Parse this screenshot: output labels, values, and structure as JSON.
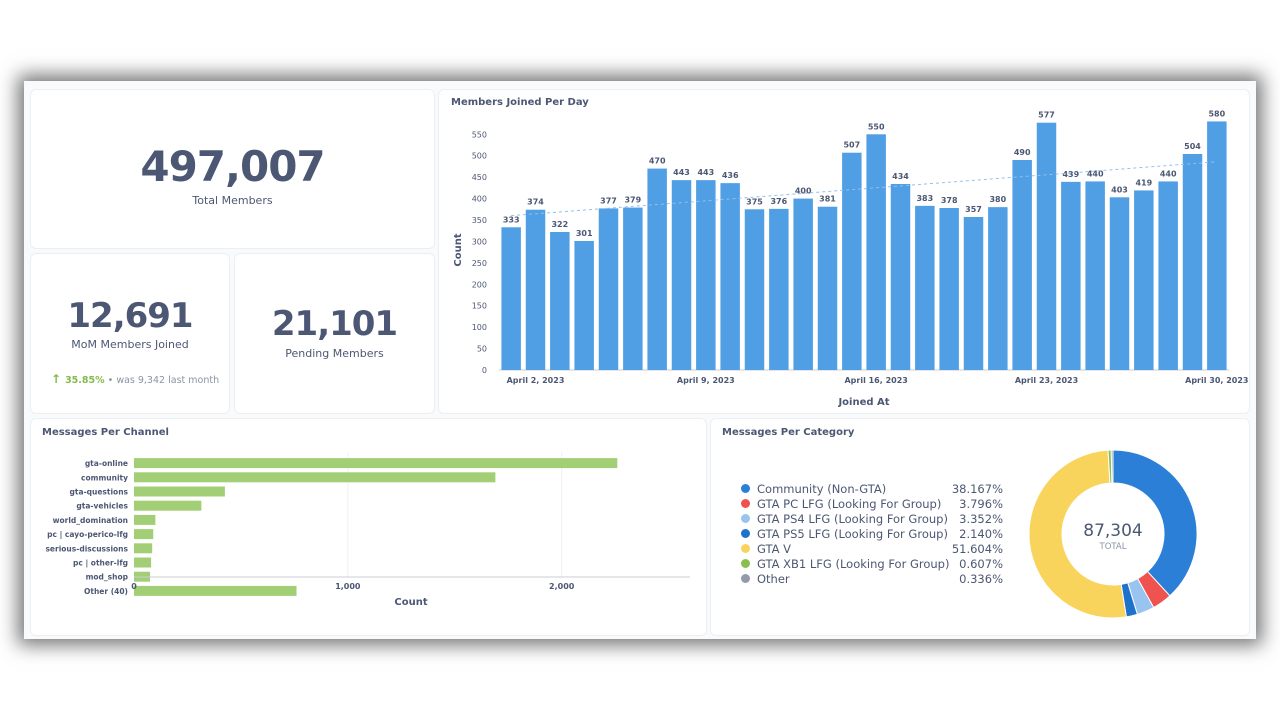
{
  "kpis": {
    "total_members": {
      "value": "497,007",
      "label": "Total Members"
    },
    "mom_members": {
      "value": "12,691",
      "label": "MoM Members Joined",
      "change": "35.85%",
      "separator": "•",
      "previous": "was 9,342",
      "period": "last month"
    },
    "pending_members": {
      "value": "21,101",
      "label": "Pending Members"
    }
  },
  "icons": {
    "trend_up": "arrow-up-icon"
  },
  "colors": {
    "bar_blue": "#509ee3",
    "bar_green": "#a2cf75",
    "text": "#4c5773",
    "muted": "#8a94a6",
    "trend_up": "#84bb4c"
  },
  "chart_data": [
    {
      "type": "bar",
      "title": "Members Joined Per Day",
      "xlabel": "Joined At",
      "ylabel": "Count",
      "x": [
        "2023-04-01",
        "2023-04-02",
        "2023-04-03",
        "2023-04-04",
        "2023-04-05",
        "2023-04-06",
        "2023-04-07",
        "2023-04-08",
        "2023-04-09",
        "2023-04-10",
        "2023-04-11",
        "2023-04-12",
        "2023-04-13",
        "2023-04-14",
        "2023-04-15",
        "2023-04-16",
        "2023-04-17",
        "2023-04-18",
        "2023-04-19",
        "2023-04-20",
        "2023-04-21",
        "2023-04-22",
        "2023-04-23",
        "2023-04-24",
        "2023-04-25",
        "2023-04-26",
        "2023-04-27",
        "2023-04-28",
        "2023-04-29",
        "2023-04-30"
      ],
      "values": [
        333,
        374,
        322,
        301,
        377,
        379,
        470,
        443,
        443,
        436,
        375,
        376,
        400,
        381,
        507,
        550,
        434,
        383,
        378,
        357,
        380,
        490,
        577,
        439,
        440,
        403,
        419,
        440,
        504,
        580
      ],
      "x_tick_labels": [
        "April 2, 2023",
        "April 9, 2023",
        "April 16, 2023",
        "April 23, 2023",
        "April 30, 2023"
      ],
      "y_ticks": [
        0,
        50,
        100,
        150,
        200,
        250,
        300,
        350,
        400,
        450,
        500,
        550
      ],
      "ylim": [
        0,
        560
      ],
      "trend_line": true,
      "data_labels": true,
      "grid": false,
      "color": "#509ee3"
    },
    {
      "type": "bar",
      "orientation": "horizontal",
      "title": "Messages Per Channel",
      "xlabel": "Count",
      "ylabel": "",
      "categories": [
        "gta-online",
        "community",
        "gta-questions",
        "gta-vehicles",
        "world_domination",
        "pc | cayo-perico-lfg",
        "serious-discussions",
        "pc | other-lfg",
        "mod_shop",
        "Other (40)"
      ],
      "values": [
        2260,
        1690,
        425,
        315,
        100,
        90,
        85,
        80,
        75,
        760
      ],
      "x_ticks": [
        "0",
        "1,000",
        "2,000"
      ],
      "xlim": [
        0,
        2600
      ],
      "color": "#a2cf75"
    },
    {
      "type": "pie",
      "donut": true,
      "title": "Messages Per Category",
      "total": "87,304",
      "total_label": "TOTAL",
      "slices": [
        {
          "name": "Community (Non-GTA)",
          "pct": "38.167%",
          "value": 38.167,
          "color": "#2c7fd6"
        },
        {
          "name": "GTA PC LFG (Looking For Group)",
          "pct": "3.796%",
          "value": 3.796,
          "color": "#ef5350"
        },
        {
          "name": "GTA PS4 LFG (Looking For Group)",
          "pct": "3.352%",
          "value": 3.352,
          "color": "#98c4ef"
        },
        {
          "name": "GTA PS5 LFG (Looking For Group)",
          "pct": "2.140%",
          "value": 2.14,
          "color": "#1f72cc"
        },
        {
          "name": "GTA V",
          "pct": "51.604%",
          "value": 51.604,
          "color": "#f9d45c"
        },
        {
          "name": "GTA XB1 LFG (Looking For Group)",
          "pct": "0.607%",
          "value": 0.607,
          "color": "#88bf4d"
        },
        {
          "name": "Other",
          "pct": "0.336%",
          "value": 0.336,
          "color": "#949aab"
        }
      ]
    }
  ]
}
